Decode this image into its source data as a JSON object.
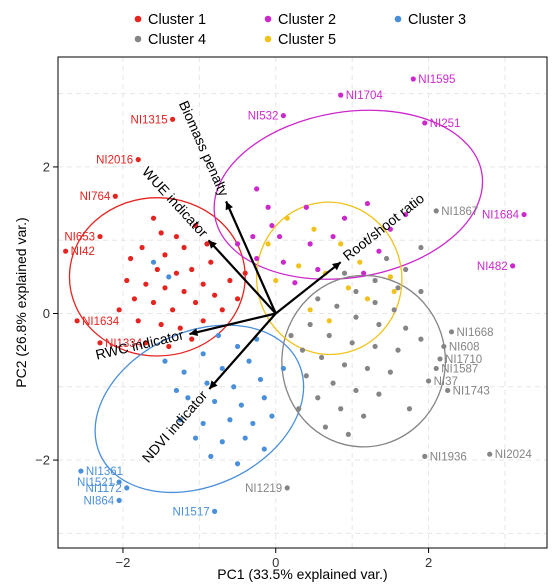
{
  "chart_data": {
    "type": "scatter",
    "xlabel": "PC1 (33.5% explained var.)",
    "ylabel": "PC2 (26.8% explained var.)",
    "xlim": [
      -2.85,
      3.55
    ],
    "ylim": [
      -3.2,
      3.5
    ],
    "xticks": [
      -2,
      0,
      2
    ],
    "yticks": [
      -2,
      0,
      2
    ],
    "grid": true,
    "legend_position": "top",
    "series": [
      {
        "name": "Cluster 1",
        "color": "#e6231f",
        "points": [
          {
            "x": -1.35,
            "y": 2.65,
            "label": "NI1315"
          },
          {
            "x": -1.8,
            "y": 2.1,
            "label": "NI2016"
          },
          {
            "x": -2.1,
            "y": 1.6,
            "label": "NI764"
          },
          {
            "x": -2.3,
            "y": 1.05,
            "label": "NI653"
          },
          {
            "x": -2.75,
            "y": 0.85,
            "label": "NI42"
          },
          {
            "x": -2.6,
            "y": -0.1,
            "label": "NI1634"
          },
          {
            "x": -2.3,
            "y": -0.4,
            "label": "NI1334"
          },
          {
            "x": -1.6,
            "y": 1.3
          },
          {
            "x": -1.5,
            "y": 1.1
          },
          {
            "x": -1.3,
            "y": 1.05
          },
          {
            "x": -1.75,
            "y": 0.9
          },
          {
            "x": -1.45,
            "y": 0.8
          },
          {
            "x": -1.2,
            "y": 0.9
          },
          {
            "x": -1.9,
            "y": 0.75
          },
          {
            "x": -1.55,
            "y": 0.6
          },
          {
            "x": -1.3,
            "y": 0.55
          },
          {
            "x": -1.1,
            "y": 0.6
          },
          {
            "x": -1.95,
            "y": 0.45
          },
          {
            "x": -1.7,
            "y": 0.4
          },
          {
            "x": -1.45,
            "y": 0.35
          },
          {
            "x": -1.2,
            "y": 0.3
          },
          {
            "x": -0.95,
            "y": 0.4
          },
          {
            "x": -1.85,
            "y": 0.2
          },
          {
            "x": -1.6,
            "y": 0.15
          },
          {
            "x": -1.35,
            "y": 0.05
          },
          {
            "x": -1.05,
            "y": 0.15
          },
          {
            "x": -0.8,
            "y": 0.25
          },
          {
            "x": -1.8,
            "y": -0.1
          },
          {
            "x": -1.5,
            "y": -0.15
          },
          {
            "x": -1.25,
            "y": -0.2
          },
          {
            "x": -0.95,
            "y": -0.1
          },
          {
            "x": -0.7,
            "y": 0.05
          },
          {
            "x": -1.7,
            "y": -0.4
          },
          {
            "x": -1.4,
            "y": -0.45
          },
          {
            "x": -1.1,
            "y": -0.35
          },
          {
            "x": -0.6,
            "y": 0.45
          },
          {
            "x": -0.5,
            "y": 0.2
          },
          {
            "x": -0.85,
            "y": 0.7
          },
          {
            "x": -1.05,
            "y": 1.2
          },
          {
            "x": -0.9,
            "y": 0.95
          },
          {
            "x": -2.05,
            "y": 0.05
          },
          {
            "x": -0.4,
            "y": 0.55
          }
        ]
      },
      {
        "name": "Cluster 2",
        "color": "#cc29cc",
        "points": [
          {
            "x": 0.85,
            "y": 2.98,
            "label": "NI1704"
          },
          {
            "x": 1.8,
            "y": 3.2,
            "label": "NI1595"
          },
          {
            "x": 0.1,
            "y": 2.7,
            "label": "NI532"
          },
          {
            "x": 1.95,
            "y": 2.6,
            "label": "NI251"
          },
          {
            "x": 3.25,
            "y": 1.35,
            "label": "NI1684"
          },
          {
            "x": 3.1,
            "y": 0.65,
            "label": "NI482"
          },
          {
            "x": -0.25,
            "y": 1.7
          },
          {
            "x": -0.1,
            "y": 1.45
          },
          {
            "x": 0.4,
            "y": 1.45
          },
          {
            "x": 1.2,
            "y": 1.5
          },
          {
            "x": 0.9,
            "y": 1.3
          },
          {
            "x": -0.05,
            "y": 1.2
          },
          {
            "x": 1.5,
            "y": 1.15
          },
          {
            "x": -0.3,
            "y": 1.05
          },
          {
            "x": 0.45,
            "y": 0.95
          },
          {
            "x": 1.35,
            "y": 0.85
          },
          {
            "x": -0.25,
            "y": 0.75
          },
          {
            "x": 0.1,
            "y": 0.7
          },
          {
            "x": 0.55,
            "y": 0.6
          },
          {
            "x": 1.15,
            "y": 0.55
          },
          {
            "x": 0.25,
            "y": 0.42
          },
          {
            "x": -0.5,
            "y": 0.95
          },
          {
            "x": 0.75,
            "y": 1.05
          },
          {
            "x": 1.7,
            "y": 1.35
          },
          {
            "x": 0.05,
            "y": 1.05
          }
        ]
      },
      {
        "name": "Cluster 3",
        "color": "#4a8fd9",
        "points": [
          {
            "x": -2.55,
            "y": -2.15,
            "label": "NI1361"
          },
          {
            "x": -2.05,
            "y": -2.3,
            "label": "NI1521"
          },
          {
            "x": -1.95,
            "y": -2.38,
            "label": "NI1172"
          },
          {
            "x": -2.05,
            "y": -2.55,
            "label": "NI864"
          },
          {
            "x": -0.8,
            "y": -2.7,
            "label": "NI1517"
          },
          {
            "x": -1.6,
            "y": 0.7
          },
          {
            "x": -1.4,
            "y": 0.5
          },
          {
            "x": -0.75,
            "y": -0.3
          },
          {
            "x": -0.5,
            "y": -0.45
          },
          {
            "x": -0.95,
            "y": -0.55
          },
          {
            "x": -0.7,
            "y": -0.75
          },
          {
            "x": -0.35,
            "y": -0.65
          },
          {
            "x": -1.2,
            "y": -0.8
          },
          {
            "x": -0.9,
            "y": -0.95
          },
          {
            "x": -0.55,
            "y": -1.0
          },
          {
            "x": -0.2,
            "y": -0.9
          },
          {
            "x": -1.15,
            "y": -1.15
          },
          {
            "x": -0.8,
            "y": -1.2
          },
          {
            "x": -0.45,
            "y": -1.25
          },
          {
            "x": -0.15,
            "y": -1.15
          },
          {
            "x": -1.25,
            "y": -1.45
          },
          {
            "x": -0.95,
            "y": -1.5
          },
          {
            "x": -0.6,
            "y": -1.45
          },
          {
            "x": -0.3,
            "y": -1.5
          },
          {
            "x": -0.05,
            "y": -1.4
          },
          {
            "x": -1.05,
            "y": -1.7
          },
          {
            "x": -0.7,
            "y": -1.75
          },
          {
            "x": -0.4,
            "y": -1.7
          },
          {
            "x": -0.85,
            "y": -1.95
          },
          {
            "x": -0.5,
            "y": -2.05
          },
          {
            "x": -1.3,
            "y": -1.05
          },
          {
            "x": -0.25,
            "y": -0.35
          },
          {
            "x": 0.1,
            "y": -0.75
          },
          {
            "x": -1.45,
            "y": -0.65
          },
          {
            "x": -0.15,
            "y": -1.85
          }
        ]
      },
      {
        "name": "Cluster 4",
        "color": "#858585",
        "points": [
          {
            "x": 2.1,
            "y": 1.4,
            "label": "NI1867"
          },
          {
            "x": 2.3,
            "y": -0.25,
            "label": "NI1668"
          },
          {
            "x": 2.2,
            "y": -0.45,
            "label": "NI608"
          },
          {
            "x": 2.15,
            "y": -0.62,
            "label": "NI1710"
          },
          {
            "x": 2.1,
            "y": -0.75,
            "label": "NI1587"
          },
          {
            "x": 2.0,
            "y": -0.92,
            "label": "NI37"
          },
          {
            "x": 2.25,
            "y": -1.05,
            "label": "NI1743"
          },
          {
            "x": 1.95,
            "y": -1.95,
            "label": "NI1936"
          },
          {
            "x": 2.8,
            "y": -1.92,
            "label": "NI2024"
          },
          {
            "x": 0.15,
            "y": -2.38,
            "label": "NI1219"
          },
          {
            "x": 1.9,
            "y": 0.9
          },
          {
            "x": 1.45,
            "y": 0.75
          },
          {
            "x": 1.7,
            "y": 0.6
          },
          {
            "x": 1.3,
            "y": 0.45
          },
          {
            "x": 1.6,
            "y": 0.35
          },
          {
            "x": 1.9,
            "y": 0.3
          },
          {
            "x": 1.05,
            "y": 0.3
          },
          {
            "x": 1.3,
            "y": 0.15
          },
          {
            "x": 1.55,
            "y": 0.05
          },
          {
            "x": 0.8,
            "y": 0.1
          },
          {
            "x": 1.05,
            "y": -0.05
          },
          {
            "x": 1.35,
            "y": -0.15
          },
          {
            "x": 1.7,
            "y": -0.2
          },
          {
            "x": 0.45,
            "y": -0.15
          },
          {
            "x": 0.7,
            "y": -0.3
          },
          {
            "x": 1.0,
            "y": -0.4
          },
          {
            "x": 1.3,
            "y": -0.45
          },
          {
            "x": 1.6,
            "y": -0.5
          },
          {
            "x": 0.35,
            "y": -0.5
          },
          {
            "x": 0.6,
            "y": -0.6
          },
          {
            "x": 0.9,
            "y": -0.7
          },
          {
            "x": 1.2,
            "y": -0.75
          },
          {
            "x": 1.5,
            "y": -0.8
          },
          {
            "x": 0.4,
            "y": -0.85
          },
          {
            "x": 0.75,
            "y": -0.95
          },
          {
            "x": 1.05,
            "y": -1.05
          },
          {
            "x": 1.35,
            "y": -1.1
          },
          {
            "x": 0.55,
            "y": -1.15
          },
          {
            "x": 0.85,
            "y": -1.3
          },
          {
            "x": 1.15,
            "y": -1.4
          },
          {
            "x": 0.65,
            "y": -1.55
          },
          {
            "x": 0.95,
            "y": -1.65
          },
          {
            "x": 0.3,
            "y": -1.3
          },
          {
            "x": 1.75,
            "y": -1.3
          },
          {
            "x": 0.2,
            "y": -0.3
          },
          {
            "x": 0.55,
            "y": 0.2
          },
          {
            "x": 1.9,
            "y": -0.35
          },
          {
            "x": 0.9,
            "y": 0.55
          }
        ]
      },
      {
        "name": "Cluster 5",
        "color": "#f0c21a",
        "points": [
          {
            "x": 0.15,
            "y": 1.3
          },
          {
            "x": 0.5,
            "y": 1.15
          },
          {
            "x": -0.1,
            "y": 0.95
          },
          {
            "x": 0.85,
            "y": 0.95
          },
          {
            "x": 1.1,
            "y": 0.7
          },
          {
            "x": 0.3,
            "y": 0.65
          },
          {
            "x": 0.65,
            "y": 0.55
          },
          {
            "x": 0.0,
            "y": 0.45
          },
          {
            "x": 1.5,
            "y": 0.5
          },
          {
            "x": 0.95,
            "y": 0.35
          },
          {
            "x": 1.55,
            "y": 0.3
          },
          {
            "x": 0.45,
            "y": 0.05
          },
          {
            "x": 1.2,
            "y": 0.2
          },
          {
            "x": 0.7,
            "y": -0.1
          }
        ]
      }
    ],
    "ellipses": [
      {
        "series": "Cluster 1",
        "cx": -1.55,
        "cy": 0.5,
        "rx": 1.15,
        "ry": 1.08,
        "angle": 0
      },
      {
        "series": "Cluster 2",
        "cx": 0.95,
        "cy": 1.62,
        "rx": 1.77,
        "ry": 1.13,
        "angle": 9
      },
      {
        "series": "Cluster 3",
        "cx": -1.0,
        "cy": -1.3,
        "rx": 1.43,
        "ry": 1.05,
        "angle": 25
      },
      {
        "series": "Cluster 4",
        "cx": 1.15,
        "cy": -0.65,
        "rx": 1.07,
        "ry": 1.17,
        "angle": -2
      },
      {
        "series": "Cluster 5",
        "cx": 0.7,
        "cy": 0.48,
        "rx": 0.95,
        "ry": 1.04,
        "angle": 8
      }
    ],
    "loadings": [
      {
        "label": "Biomass penalty",
        "x": -0.65,
        "y": 1.53
      },
      {
        "label": "WUE indicator",
        "x": -0.88,
        "y": 1.0
      },
      {
        "label": "Root/shoot ratio",
        "x": 0.85,
        "y": 0.7
      },
      {
        "label": "RWC indicator",
        "x": -1.13,
        "y": -0.28
      },
      {
        "label": "NDVI indicator",
        "x": -0.87,
        "y": -1.03
      }
    ]
  }
}
